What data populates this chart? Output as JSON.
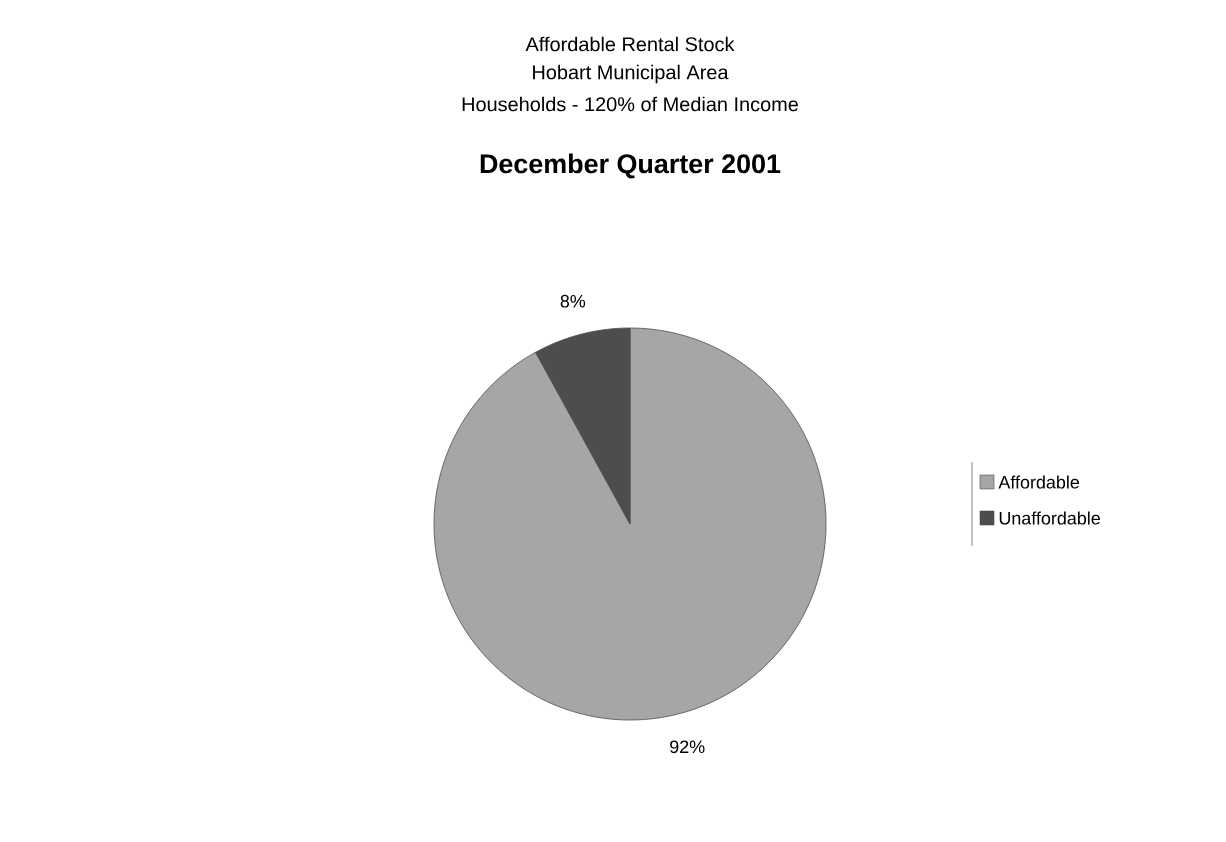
{
  "chart_data": {
    "type": "pie",
    "title": "Affordable Rental Stock",
    "annotations": [
      "Hobart Municipal Area",
      "Households - 120% of Median Income"
    ],
    "subtitle": "December Quarter 2001",
    "categories": [
      "Affordable",
      "Unaffordable"
    ],
    "values": [
      92,
      8
    ],
    "value_labels": [
      "92%",
      "8%"
    ],
    "colors": [
      "#a6a6a6",
      "#4d4d4d"
    ],
    "legend": "right"
  }
}
